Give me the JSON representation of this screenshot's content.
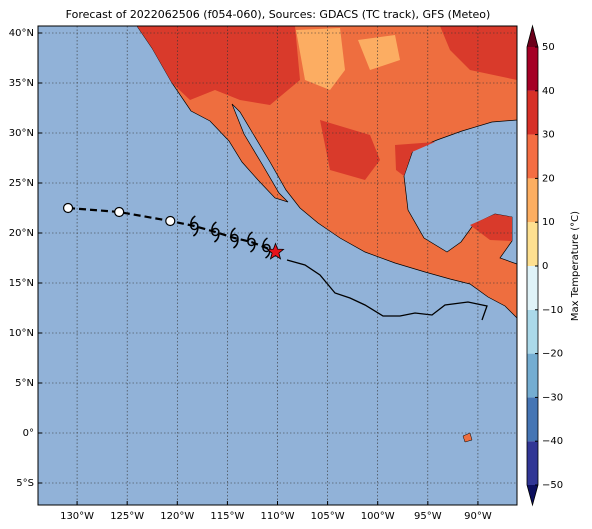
{
  "chart_data": {
    "type": "map",
    "title": "Forecast of 2022062506 (f054-060), Sources: GDACS (TC track), GFS (Meteo)",
    "xlim": [
      -133.9,
      -86.1
    ],
    "ylim": [
      -7.2,
      40.7
    ],
    "xticks": [
      {
        "value": -130,
        "label": "130°W"
      },
      {
        "value": -125,
        "label": "125°W"
      },
      {
        "value": -120,
        "label": "120°W"
      },
      {
        "value": -115,
        "label": "115°W"
      },
      {
        "value": -110,
        "label": "110°W"
      },
      {
        "value": -105,
        "label": "105°W"
      },
      {
        "value": -100,
        "label": "100°W"
      },
      {
        "value": -95,
        "label": "95°W"
      },
      {
        "value": -90,
        "label": "90°W"
      }
    ],
    "yticks": [
      {
        "value": -5,
        "label": "5°S"
      },
      {
        "value": 0,
        "label": "0°"
      },
      {
        "value": 5,
        "label": "5°N"
      },
      {
        "value": 10,
        "label": "10°N"
      },
      {
        "value": 15,
        "label": "15°N"
      },
      {
        "value": 20,
        "label": "20°N"
      },
      {
        "value": 25,
        "label": "25°N"
      },
      {
        "value": 30,
        "label": "30°N"
      },
      {
        "value": 35,
        "label": "35°N"
      },
      {
        "value": 40,
        "label": "40°N"
      }
    ],
    "grid": true,
    "track": {
      "x": [
        -130.9,
        -125.8,
        -120.7,
        -118.3,
        -116.2,
        -114.3,
        -112.6,
        -111.1,
        -110.2
      ],
      "y": [
        22.5,
        22.1,
        21.2,
        20.7,
        20.1,
        19.5,
        19.1,
        18.5,
        18.1
      ],
      "markers": [
        "circle",
        "circle",
        "circle",
        "cyclone",
        "cyclone",
        "cyclone",
        "cyclone",
        "cyclone",
        "star"
      ],
      "color": "#000000",
      "star_color": "#e8121b"
    },
    "colorbar": {
      "label": "Max Temperature (°C)",
      "lim": [
        -50,
        50
      ],
      "ticks": [
        {
          "value": -50,
          "label": "−50"
        },
        {
          "value": -40,
          "label": "−40"
        },
        {
          "value": -30,
          "label": "−30"
        },
        {
          "value": -20,
          "label": "−20"
        },
        {
          "value": -10,
          "label": "−10"
        },
        0,
        10,
        20,
        30,
        40,
        50
      ],
      "colors": [
        "#313695",
        "#4575b4",
        "#74add1",
        "#abd9e9",
        "#e0f3f8",
        "#fee090",
        "#fdae61",
        "#f46d43",
        "#d73027",
        "#a50026"
      ],
      "under": "#0c0f5e",
      "over": "#6b001a"
    }
  }
}
